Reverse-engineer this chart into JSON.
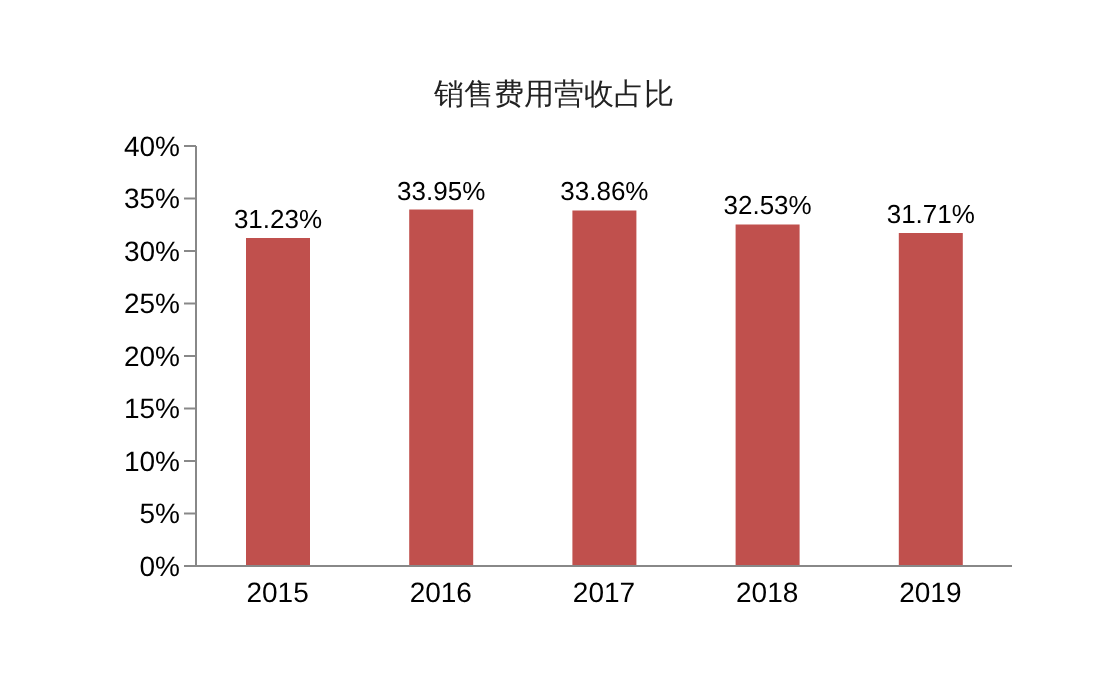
{
  "chart_data": {
    "type": "bar",
    "title": "销售费用营收占比",
    "categories": [
      "2015",
      "2016",
      "2017",
      "2018",
      "2019"
    ],
    "values": [
      31.23,
      33.95,
      33.86,
      32.53,
      31.71
    ],
    "value_labels": [
      "31.23%",
      "33.95%",
      "33.86%",
      "32.53%",
      "31.71%"
    ],
    "color": "#c0504d",
    "ylim": [
      0,
      40
    ],
    "yticks": [
      {
        "value": 0,
        "label": "0%"
      },
      {
        "value": 5,
        "label": "5%"
      },
      {
        "value": 10,
        "label": "10%"
      },
      {
        "value": 15,
        "label": "15%"
      },
      {
        "value": 20,
        "label": "20%"
      },
      {
        "value": 25,
        "label": "25%"
      },
      {
        "value": 30,
        "label": "30%"
      },
      {
        "value": 35,
        "label": "35%"
      },
      {
        "value": 40,
        "label": "40%"
      }
    ],
    "grid": false
  }
}
